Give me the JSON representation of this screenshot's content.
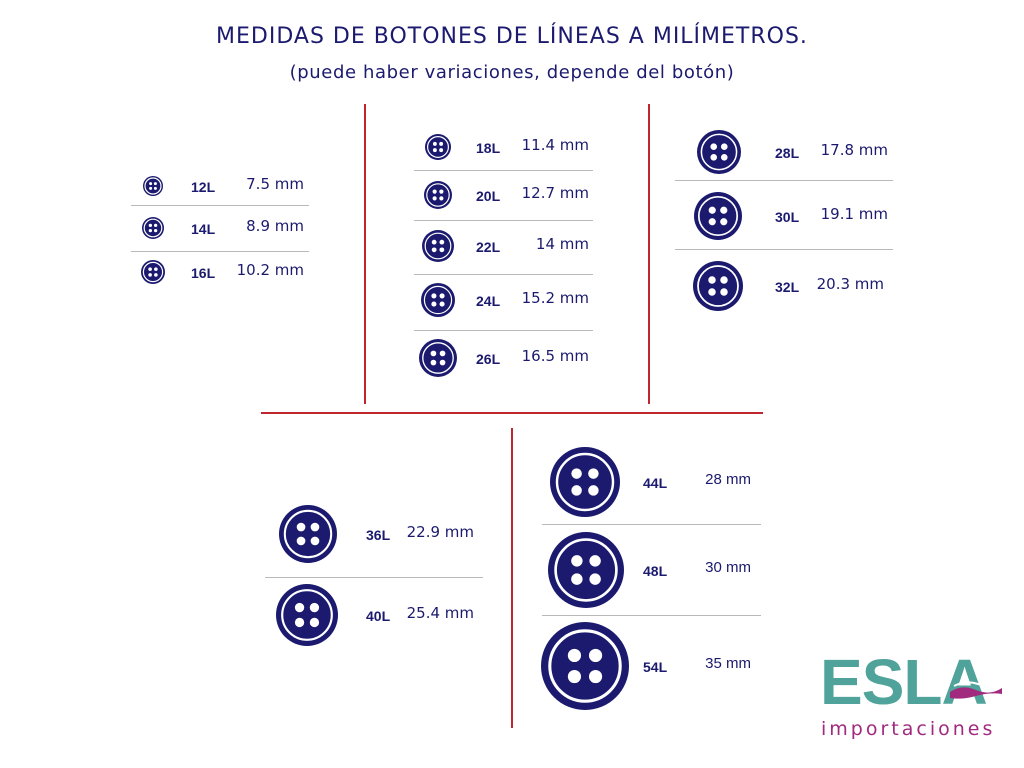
{
  "title": "MEDIDAS DE BOTONES DE LÍNEAS A MILÍMETROS.",
  "subtitle": "(puede haber variaciones, depende del botón)",
  "colors": {
    "navy": "#1b1a6e",
    "divider_red": "#c0272d",
    "separator_gray": "#b9b9b9",
    "logo_teal": "#4fa39a",
    "logo_magenta": "#a12a7f"
  },
  "buttons": [
    {
      "line": "12L",
      "mm": "7.5 mm"
    },
    {
      "line": "14L",
      "mm": "8.9 mm"
    },
    {
      "line": "16L",
      "mm": "10.2 mm"
    },
    {
      "line": "18L",
      "mm": "11.4 mm"
    },
    {
      "line": "20L",
      "mm": "12.7 mm"
    },
    {
      "line": "22L",
      "mm": "14 mm"
    },
    {
      "line": "24L",
      "mm": "15.2 mm"
    },
    {
      "line": "26L",
      "mm": "16.5 mm"
    },
    {
      "line": "28L",
      "mm": "17.8 mm"
    },
    {
      "line": "30L",
      "mm": "19.1 mm"
    },
    {
      "line": "32L",
      "mm": "20.3 mm"
    },
    {
      "line": "36L",
      "mm": "22.9 mm"
    },
    {
      "line": "40L",
      "mm": "25.4 mm"
    },
    {
      "line": "44L",
      "mm": "28 mm"
    },
    {
      "line": "48L",
      "mm": "30 mm"
    },
    {
      "line": "54L",
      "mm": "35 mm"
    }
  ],
  "logo": {
    "brand": "ESLA",
    "tagline": "importaciones"
  }
}
